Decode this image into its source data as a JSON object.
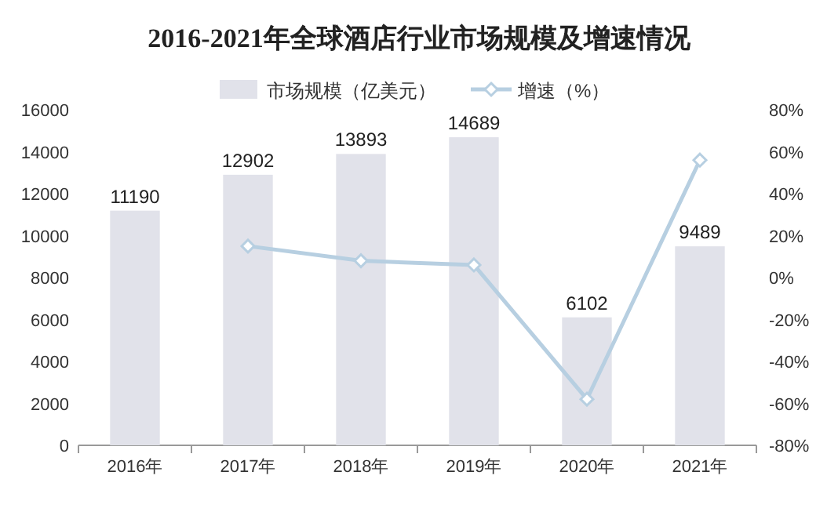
{
  "chart_data": {
    "type": "bar",
    "title": "2016-2021年全球酒店行业市场规模及增速情况",
    "categories": [
      "2016年",
      "2017年",
      "2018年",
      "2019年",
      "2020年",
      "2021年"
    ],
    "series": [
      {
        "name": "市场规模（亿美元）",
        "color": "#e1e2ea",
        "values": [
          11190,
          12902,
          13893,
          14689,
          6102,
          9489
        ],
        "value_labels": [
          "11190",
          "12902",
          "13893",
          "14689",
          "6102",
          "9489"
        ]
      },
      {
        "name": "增速（%）",
        "type": "line",
        "axis": "y2",
        "color": "#b7cfe1",
        "marker": "diamond",
        "values": [
          null,
          15,
          8,
          6,
          -58,
          56
        ]
      }
    ],
    "ylim": [
      0,
      16000
    ],
    "yticks": [
      0,
      2000,
      4000,
      6000,
      8000,
      10000,
      12000,
      14000,
      16000
    ],
    "y2lim": [
      -80,
      80
    ],
    "y2ticks": [
      {
        "value": -80,
        "label": "-80%"
      },
      {
        "value": -60,
        "label": "-60%"
      },
      {
        "value": -40,
        "label": "-40%"
      },
      {
        "value": -20,
        "label": "-20%"
      },
      {
        "value": 0,
        "label": "0%"
      },
      {
        "value": 20,
        "label": "20%"
      },
      {
        "value": 40,
        "label": "40%"
      },
      {
        "value": 60,
        "label": "60%"
      },
      {
        "value": 80,
        "label": "80%"
      }
    ],
    "legend": "top",
    "grid": false
  }
}
